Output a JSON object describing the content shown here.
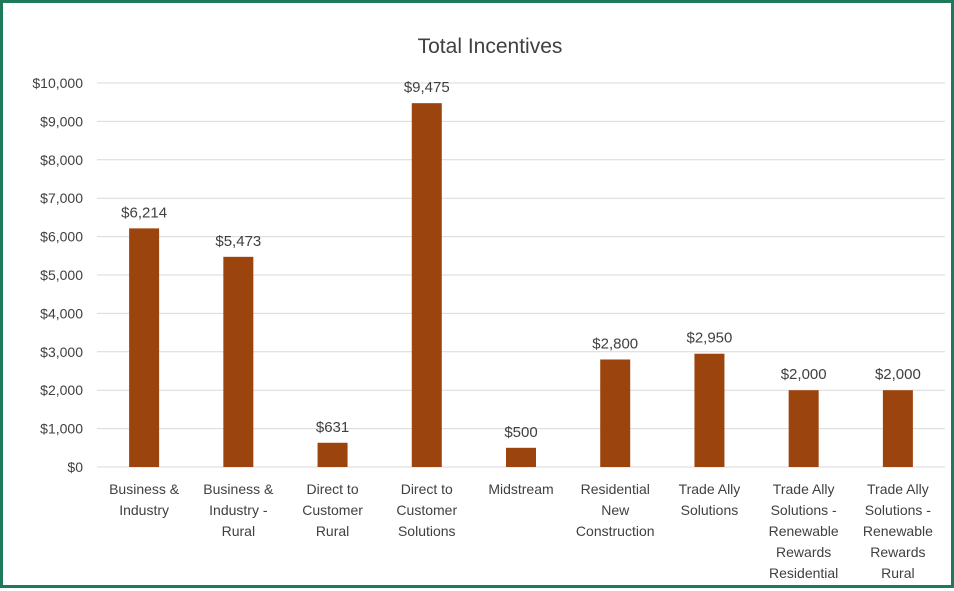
{
  "chart_data": {
    "type": "bar",
    "title": "Total Incentives",
    "xlabel": "",
    "ylabel": "",
    "ylim": [
      0,
      10000
    ],
    "yticks": [
      0,
      1000,
      2000,
      3000,
      4000,
      5000,
      6000,
      7000,
      8000,
      9000,
      10000
    ],
    "ytick_labels": [
      "$0",
      "$1,000",
      "$2,000",
      "$3,000",
      "$4,000",
      "$5,000",
      "$6,000",
      "$7,000",
      "$8,000",
      "$9,000",
      "$10,000"
    ],
    "grid": true,
    "legend": "none",
    "colors": {
      "bar": "#9c440e",
      "grid": "#d9d9d9",
      "border": "#1e7a5a",
      "text": "#404040"
    },
    "categories": [
      [
        "Business &",
        "Industry"
      ],
      [
        "Business &",
        "Industry -",
        "Rural"
      ],
      [
        "Direct to",
        "Customer",
        "Rural"
      ],
      [
        "Direct to",
        "Customer",
        "Solutions"
      ],
      [
        "Midstream"
      ],
      [
        "Residential",
        "New",
        "Construction"
      ],
      [
        "Trade Ally",
        "Solutions"
      ],
      [
        "Trade Ally",
        "Solutions -",
        "Renewable",
        "Rewards",
        "Residential"
      ],
      [
        "Trade Ally",
        "Solutions -",
        "Renewable",
        "Rewards",
        "Rural"
      ]
    ],
    "values": [
      6214,
      5473,
      631,
      9475,
      500,
      2800,
      2950,
      2000,
      2000
    ],
    "data_labels": [
      "$6,214",
      "$5,473",
      "$631",
      "$9,475",
      "$500",
      "$2,800",
      "$2,950",
      "$2,000",
      "$2,000"
    ]
  }
}
